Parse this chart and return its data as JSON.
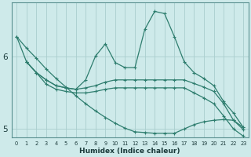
{
  "xlabel": "Humidex (Indice chaleur)",
  "bg_color": "#ceeaea",
  "line_color": "#2e7d6e",
  "grid_major_color": "#aacece",
  "grid_minor_color": "#c0dede",
  "xlim": [
    -0.5,
    23.5
  ],
  "ylim": [
    4.88,
    6.75
  ],
  "yticks": [
    5,
    6
  ],
  "xticks": [
    0,
    1,
    2,
    3,
    4,
    5,
    6,
    7,
    8,
    9,
    10,
    11,
    12,
    13,
    14,
    15,
    16,
    17,
    18,
    19,
    20,
    21,
    22,
    23
  ],
  "line1_x": [
    0,
    1,
    2,
    3,
    4,
    5,
    6,
    7,
    8,
    9,
    10,
    11,
    12,
    13,
    14,
    15,
    16,
    17,
    18,
    19,
    20,
    21,
    22,
    23
  ],
  "line1_y": [
    6.28,
    5.93,
    5.78,
    5.68,
    5.6,
    5.57,
    5.55,
    5.68,
    6.01,
    6.18,
    5.92,
    5.85,
    5.85,
    6.38,
    6.63,
    6.6,
    6.28,
    5.93,
    5.78,
    5.7,
    5.6,
    5.38,
    5.22,
    5.02
  ],
  "line2_x": [
    1,
    2,
    3,
    4,
    5,
    6,
    7,
    8,
    9,
    10,
    11,
    12,
    13,
    14,
    15,
    16,
    17,
    18,
    19,
    20,
    21,
    22,
    23
  ],
  "line2_y": [
    5.93,
    5.78,
    5.68,
    5.6,
    5.57,
    5.55,
    5.57,
    5.6,
    5.65,
    5.68,
    5.68,
    5.68,
    5.68,
    5.68,
    5.68,
    5.68,
    5.68,
    5.63,
    5.58,
    5.52,
    5.35,
    5.12,
    4.99
  ],
  "line3_x": [
    1,
    2,
    3,
    4,
    5,
    6,
    7,
    8,
    9,
    10,
    11,
    12,
    13,
    14,
    15,
    16,
    17,
    18,
    19,
    20,
    21,
    22,
    23
  ],
  "line3_y": [
    5.93,
    5.78,
    5.62,
    5.55,
    5.52,
    5.5,
    5.5,
    5.52,
    5.55,
    5.57,
    5.57,
    5.57,
    5.57,
    5.57,
    5.57,
    5.57,
    5.57,
    5.5,
    5.43,
    5.35,
    5.18,
    5.0,
    4.9
  ],
  "line4_x": [
    0,
    1,
    2,
    3,
    4,
    5,
    6,
    7,
    8,
    9,
    10,
    11,
    12,
    13,
    14,
    15,
    16,
    17,
    18,
    19,
    20,
    21,
    22,
    23
  ],
  "line4_y": [
    6.28,
    6.12,
    5.98,
    5.83,
    5.7,
    5.58,
    5.46,
    5.35,
    5.25,
    5.16,
    5.08,
    5.01,
    4.96,
    4.95,
    4.94,
    4.94,
    4.94,
    5.0,
    5.06,
    5.1,
    5.12,
    5.13,
    5.12,
    5.02
  ],
  "marker_size": 3.5,
  "linewidth": 0.9
}
